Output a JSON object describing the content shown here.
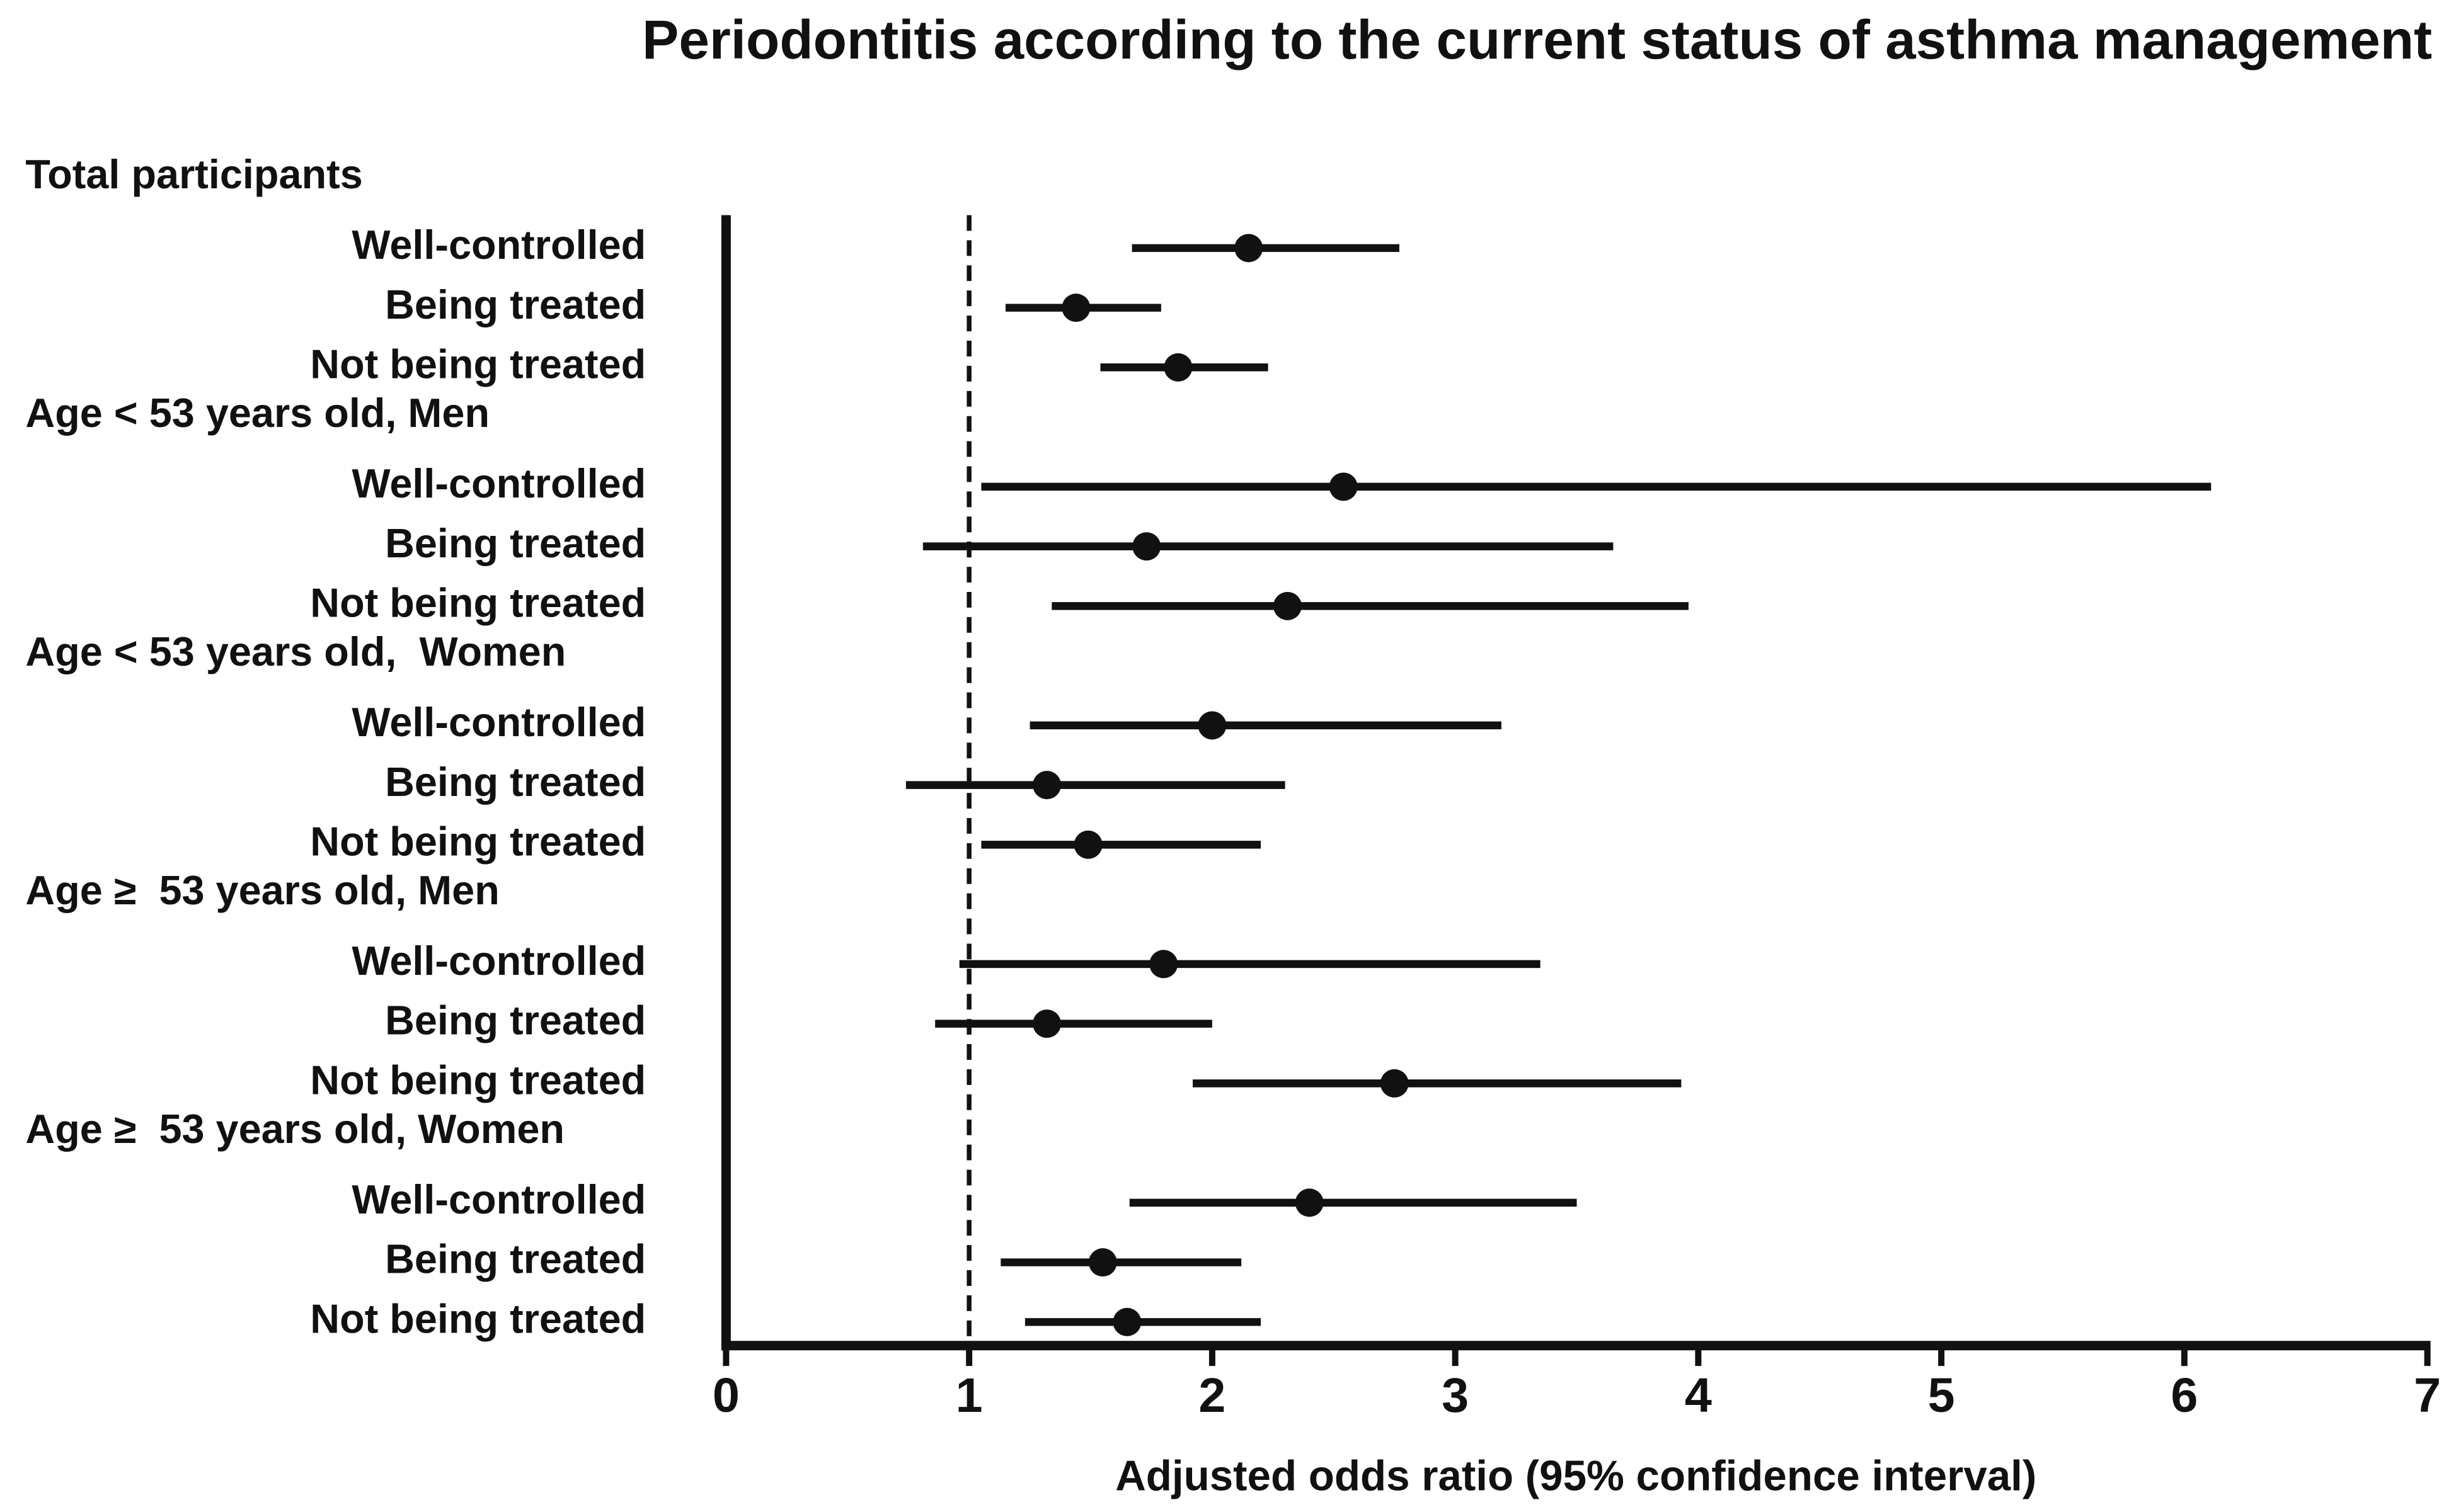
{
  "chart_data": {
    "type": "forest",
    "title": "Periodontitis according to the current status of asthma management",
    "xlabel": "Adjusted odds ratio (95% confidence interval)",
    "xlim": [
      0,
      7
    ],
    "xticks": [
      0,
      1,
      2,
      3,
      4,
      5,
      6,
      7
    ],
    "reference": 1,
    "color": "#111111",
    "groups": [
      {
        "name": "Total participants",
        "rows": [
          {
            "label": "Well-controlled",
            "value": 2.15,
            "low": 1.67,
            "high": 2.77
          },
          {
            "label": "Being treated",
            "value": 1.44,
            "low": 1.15,
            "high": 1.79
          },
          {
            "label": "Not being treated",
            "value": 1.86,
            "low": 1.54,
            "high": 2.23
          }
        ]
      },
      {
        "name": "Age < 53 years old, Men",
        "rows": [
          {
            "label": "Well-controlled",
            "value": 2.54,
            "low": 1.05,
            "high": 6.11
          },
          {
            "label": "Being treated",
            "value": 1.73,
            "low": 0.81,
            "high": 3.65
          },
          {
            "label": "Not being treated",
            "value": 2.31,
            "low": 1.34,
            "high": 3.96
          }
        ]
      },
      {
        "name": "Age < 53 years old,  Women",
        "rows": [
          {
            "label": "Well-controlled",
            "value": 2.0,
            "low": 1.25,
            "high": 3.19
          },
          {
            "label": "Being treated",
            "value": 1.32,
            "low": 0.74,
            "high": 2.3
          },
          {
            "label": "Not being treated",
            "value": 1.49,
            "low": 1.05,
            "high": 2.2
          }
        ]
      },
      {
        "name": "Age ≥  53 years old, Men",
        "rows": [
          {
            "label": "Well-controlled",
            "value": 1.8,
            "low": 0.96,
            "high": 3.35
          },
          {
            "label": "Being treated",
            "value": 1.32,
            "low": 0.86,
            "high": 2.0
          },
          {
            "label": "Not being treated",
            "value": 2.75,
            "low": 1.92,
            "high": 3.93
          }
        ]
      },
      {
        "name": "Age ≥  53 years old, Women",
        "rows": [
          {
            "label": "Well-controlled",
            "value": 2.4,
            "low": 1.66,
            "high": 3.5
          },
          {
            "label": "Being treated",
            "value": 1.55,
            "low": 1.13,
            "high": 2.12
          },
          {
            "label": "Not being treated",
            "value": 1.65,
            "low": 1.23,
            "high": 2.2
          }
        ]
      }
    ]
  }
}
